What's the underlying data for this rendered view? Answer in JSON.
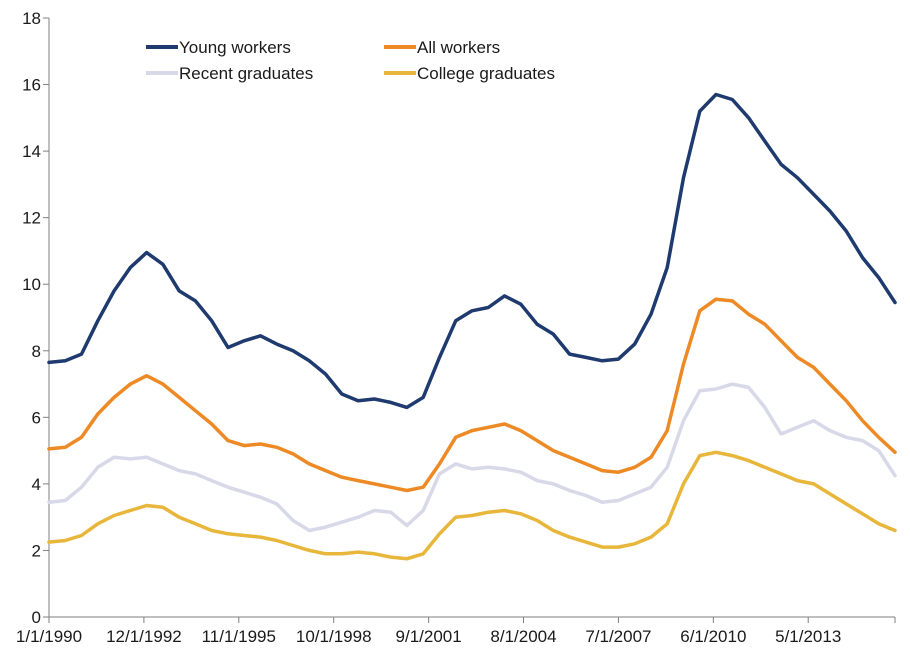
{
  "chart_data": {
    "type": "line",
    "title": "",
    "xlabel": "",
    "ylabel": "",
    "ylim": [
      0,
      18
    ],
    "yticks": [
      0,
      2,
      4,
      6,
      8,
      10,
      12,
      14,
      16,
      18
    ],
    "y_tick_labels": [
      "0",
      "2",
      "4",
      "6",
      "8",
      "10",
      "12",
      "14",
      "16",
      "18"
    ],
    "x_tick_labels": [
      "1/1/1990",
      "12/1/1992",
      "11/1/1995",
      "10/1/1998",
      "9/1/2001",
      "8/1/2004",
      "7/1/2007",
      "6/1/2010",
      "5/1/2013"
    ],
    "x_tick_values": [
      1990.0,
      1992.917,
      1995.833,
      1998.75,
      2001.667,
      2004.583,
      2007.5,
      2010.417,
      2013.333
    ],
    "xlim": [
      1990.0,
      2016.0
    ],
    "grid": false,
    "legend_position": "top-left",
    "series": [
      {
        "name": "Young workers",
        "color": "#1f3a6e",
        "points": [
          [
            1990.0,
            7.65
          ],
          [
            1990.5,
            7.7
          ],
          [
            1991.0,
            7.9
          ],
          [
            1991.5,
            8.9
          ],
          [
            1992.0,
            9.8
          ],
          [
            1992.5,
            10.5
          ],
          [
            1993.0,
            10.95
          ],
          [
            1993.5,
            10.6
          ],
          [
            1994.0,
            9.8
          ],
          [
            1994.5,
            9.5
          ],
          [
            1995.0,
            8.9
          ],
          [
            1995.5,
            8.1
          ],
          [
            1996.0,
            8.3
          ],
          [
            1996.5,
            8.45
          ],
          [
            1997.0,
            8.2
          ],
          [
            1997.5,
            8.0
          ],
          [
            1998.0,
            7.7
          ],
          [
            1998.5,
            7.3
          ],
          [
            1999.0,
            6.7
          ],
          [
            1999.5,
            6.5
          ],
          [
            2000.0,
            6.55
          ],
          [
            2000.5,
            6.45
          ],
          [
            2001.0,
            6.3
          ],
          [
            2001.5,
            6.6
          ],
          [
            2002.0,
            7.8
          ],
          [
            2002.5,
            8.9
          ],
          [
            2003.0,
            9.2
          ],
          [
            2003.5,
            9.3
          ],
          [
            2004.0,
            9.65
          ],
          [
            2004.5,
            9.4
          ],
          [
            2005.0,
            8.8
          ],
          [
            2005.5,
            8.5
          ],
          [
            2006.0,
            7.9
          ],
          [
            2006.5,
            7.8
          ],
          [
            2007.0,
            7.7
          ],
          [
            2007.5,
            7.75
          ],
          [
            2008.0,
            8.2
          ],
          [
            2008.5,
            9.1
          ],
          [
            2009.0,
            10.5
          ],
          [
            2009.5,
            13.2
          ],
          [
            2010.0,
            15.2
          ],
          [
            2010.5,
            15.7
          ],
          [
            2011.0,
            15.55
          ],
          [
            2011.5,
            15.0
          ],
          [
            2012.0,
            14.3
          ],
          [
            2012.5,
            13.6
          ],
          [
            2013.0,
            13.2
          ],
          [
            2013.5,
            12.7
          ],
          [
            2014.0,
            12.2
          ],
          [
            2014.5,
            11.6
          ],
          [
            2015.0,
            10.8
          ],
          [
            2015.5,
            10.2
          ],
          [
            2016.0,
            9.45
          ]
        ]
      },
      {
        "name": "Recent graduates",
        "color": "#d7d9e8",
        "points": [
          [
            1990.0,
            3.45
          ],
          [
            1990.5,
            3.5
          ],
          [
            1991.0,
            3.9
          ],
          [
            1991.5,
            4.5
          ],
          [
            1992.0,
            4.8
          ],
          [
            1992.5,
            4.75
          ],
          [
            1993.0,
            4.8
          ],
          [
            1993.5,
            4.6
          ],
          [
            1994.0,
            4.4
          ],
          [
            1994.5,
            4.3
          ],
          [
            1995.0,
            4.1
          ],
          [
            1995.5,
            3.9
          ],
          [
            1996.0,
            3.75
          ],
          [
            1996.5,
            3.6
          ],
          [
            1997.0,
            3.4
          ],
          [
            1997.5,
            2.9
          ],
          [
            1998.0,
            2.6
          ],
          [
            1998.5,
            2.7
          ],
          [
            1999.0,
            2.85
          ],
          [
            1999.5,
            3.0
          ],
          [
            2000.0,
            3.2
          ],
          [
            2000.5,
            3.15
          ],
          [
            2001.0,
            2.75
          ],
          [
            2001.5,
            3.2
          ],
          [
            2002.0,
            4.3
          ],
          [
            2002.5,
            4.6
          ],
          [
            2003.0,
            4.45
          ],
          [
            2003.5,
            4.5
          ],
          [
            2004.0,
            4.45
          ],
          [
            2004.5,
            4.35
          ],
          [
            2005.0,
            4.1
          ],
          [
            2005.5,
            4.0
          ],
          [
            2006.0,
            3.8
          ],
          [
            2006.5,
            3.65
          ],
          [
            2007.0,
            3.45
          ],
          [
            2007.5,
            3.5
          ],
          [
            2008.0,
            3.7
          ],
          [
            2008.5,
            3.9
          ],
          [
            2009.0,
            4.5
          ],
          [
            2009.5,
            5.9
          ],
          [
            2010.0,
            6.8
          ],
          [
            2010.5,
            6.85
          ],
          [
            2011.0,
            7.0
          ],
          [
            2011.5,
            6.9
          ],
          [
            2012.0,
            6.3
          ],
          [
            2012.5,
            5.5
          ],
          [
            2013.0,
            5.7
          ],
          [
            2013.5,
            5.9
          ],
          [
            2014.0,
            5.6
          ],
          [
            2014.5,
            5.4
          ],
          [
            2015.0,
            5.3
          ],
          [
            2015.5,
            5.0
          ],
          [
            2016.0,
            4.25
          ]
        ]
      },
      {
        "name": "All workers",
        "color": "#ee8a25",
        "points": [
          [
            1990.0,
            5.05
          ],
          [
            1990.5,
            5.1
          ],
          [
            1991.0,
            5.4
          ],
          [
            1991.5,
            6.1
          ],
          [
            1992.0,
            6.6
          ],
          [
            1992.5,
            7.0
          ],
          [
            1993.0,
            7.25
          ],
          [
            1993.5,
            7.0
          ],
          [
            1994.0,
            6.6
          ],
          [
            1994.5,
            6.2
          ],
          [
            1995.0,
            5.8
          ],
          [
            1995.5,
            5.3
          ],
          [
            1996.0,
            5.15
          ],
          [
            1996.5,
            5.2
          ],
          [
            1997.0,
            5.1
          ],
          [
            1997.5,
            4.9
          ],
          [
            1998.0,
            4.6
          ],
          [
            1998.5,
            4.4
          ],
          [
            1999.0,
            4.2
          ],
          [
            1999.5,
            4.1
          ],
          [
            2000.0,
            4.0
          ],
          [
            2000.5,
            3.9
          ],
          [
            2001.0,
            3.8
          ],
          [
            2001.5,
            3.9
          ],
          [
            2002.0,
            4.6
          ],
          [
            2002.5,
            5.4
          ],
          [
            2003.0,
            5.6
          ],
          [
            2003.5,
            5.7
          ],
          [
            2004.0,
            5.8
          ],
          [
            2004.5,
            5.6
          ],
          [
            2005.0,
            5.3
          ],
          [
            2005.5,
            5.0
          ],
          [
            2006.0,
            4.8
          ],
          [
            2006.5,
            4.6
          ],
          [
            2007.0,
            4.4
          ],
          [
            2007.5,
            4.35
          ],
          [
            2008.0,
            4.5
          ],
          [
            2008.5,
            4.8
          ],
          [
            2009.0,
            5.6
          ],
          [
            2009.5,
            7.6
          ],
          [
            2010.0,
            9.2
          ],
          [
            2010.5,
            9.55
          ],
          [
            2011.0,
            9.5
          ],
          [
            2011.5,
            9.1
          ],
          [
            2012.0,
            8.8
          ],
          [
            2012.5,
            8.3
          ],
          [
            2013.0,
            7.8
          ],
          [
            2013.5,
            7.5
          ],
          [
            2014.0,
            7.0
          ],
          [
            2014.5,
            6.5
          ],
          [
            2015.0,
            5.9
          ],
          [
            2015.5,
            5.4
          ],
          [
            2016.0,
            4.95
          ]
        ]
      },
      {
        "name": "College graduates",
        "color": "#e8b63b",
        "points": [
          [
            1990.0,
            2.25
          ],
          [
            1990.5,
            2.3
          ],
          [
            1991.0,
            2.45
          ],
          [
            1991.5,
            2.8
          ],
          [
            1992.0,
            3.05
          ],
          [
            1992.5,
            3.2
          ],
          [
            1993.0,
            3.35
          ],
          [
            1993.5,
            3.3
          ],
          [
            1994.0,
            3.0
          ],
          [
            1994.5,
            2.8
          ],
          [
            1995.0,
            2.6
          ],
          [
            1995.5,
            2.5
          ],
          [
            1996.0,
            2.45
          ],
          [
            1996.5,
            2.4
          ],
          [
            1997.0,
            2.3
          ],
          [
            1997.5,
            2.15
          ],
          [
            1998.0,
            2.0
          ],
          [
            1998.5,
            1.9
          ],
          [
            1999.0,
            1.9
          ],
          [
            1999.5,
            1.95
          ],
          [
            2000.0,
            1.9
          ],
          [
            2000.5,
            1.8
          ],
          [
            2001.0,
            1.75
          ],
          [
            2001.5,
            1.9
          ],
          [
            2002.0,
            2.5
          ],
          [
            2002.5,
            3.0
          ],
          [
            2003.0,
            3.05
          ],
          [
            2003.5,
            3.15
          ],
          [
            2004.0,
            3.2
          ],
          [
            2004.5,
            3.1
          ],
          [
            2005.0,
            2.9
          ],
          [
            2005.5,
            2.6
          ],
          [
            2006.0,
            2.4
          ],
          [
            2006.5,
            2.25
          ],
          [
            2007.0,
            2.1
          ],
          [
            2007.5,
            2.1
          ],
          [
            2008.0,
            2.2
          ],
          [
            2008.5,
            2.4
          ],
          [
            2009.0,
            2.8
          ],
          [
            2009.5,
            4.0
          ],
          [
            2010.0,
            4.85
          ],
          [
            2010.5,
            4.95
          ],
          [
            2011.0,
            4.85
          ],
          [
            2011.5,
            4.7
          ],
          [
            2012.0,
            4.5
          ],
          [
            2012.5,
            4.3
          ],
          [
            2013.0,
            4.1
          ],
          [
            2013.5,
            4.0
          ],
          [
            2014.0,
            3.7
          ],
          [
            2014.5,
            3.4
          ],
          [
            2015.0,
            3.1
          ],
          [
            2015.5,
            2.8
          ],
          [
            2016.0,
            2.6
          ]
        ]
      }
    ],
    "legend": [
      {
        "name": "Young workers",
        "color": "#1f3a6e",
        "col": 0,
        "row": 0
      },
      {
        "name": "All workers",
        "color": "#ee8a25",
        "col": 1,
        "row": 0
      },
      {
        "name": "Recent graduates",
        "color": "#d7d9e8",
        "col": 0,
        "row": 1
      },
      {
        "name": "College graduates",
        "color": "#e8b63b",
        "col": 1,
        "row": 1
      }
    ]
  }
}
